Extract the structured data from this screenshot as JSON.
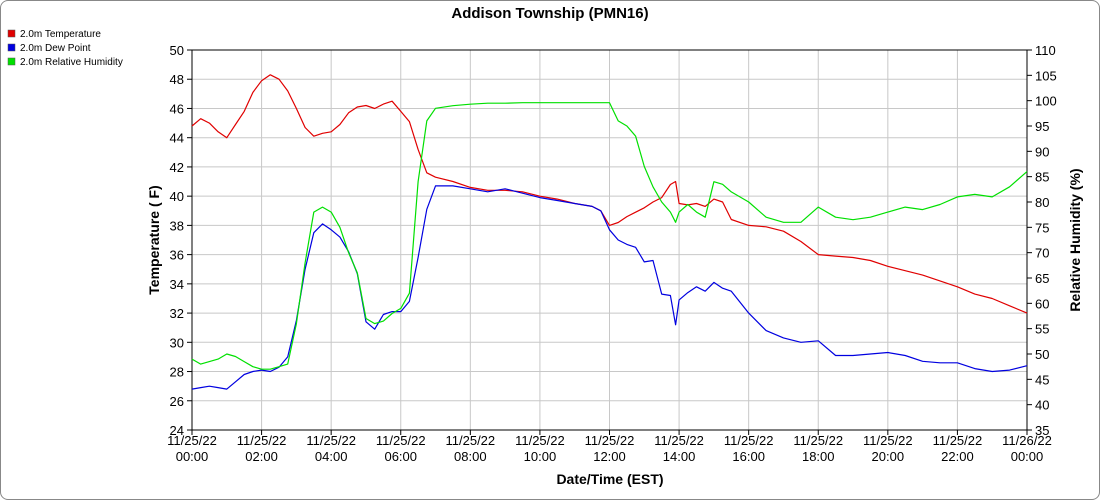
{
  "chart_data": {
    "type": "line",
    "title": "Addison Township (PMN16)",
    "xlabel": "Date/Time (EST)",
    "ylabel": "Temperature ( F)",
    "y2label": "Relative Humidity (%)",
    "xlim": [
      0,
      24
    ],
    "ylim": [
      24,
      50
    ],
    "y2lim": [
      35,
      110
    ],
    "grid": true,
    "legend_position": "top-left",
    "x_tick_labels": [
      {
        "x": 0,
        "date": "11/25/22",
        "time": "00:00"
      },
      {
        "x": 2,
        "date": "11/25/22",
        "time": "02:00"
      },
      {
        "x": 4,
        "date": "11/25/22",
        "time": "04:00"
      },
      {
        "x": 6,
        "date": "11/25/22",
        "time": "06:00"
      },
      {
        "x": 8,
        "date": "11/25/22",
        "time": "08:00"
      },
      {
        "x": 10,
        "date": "11/25/22",
        "time": "10:00"
      },
      {
        "x": 12,
        "date": "11/25/22",
        "time": "12:00"
      },
      {
        "x": 14,
        "date": "11/25/22",
        "time": "14:00"
      },
      {
        "x": 16,
        "date": "11/25/22",
        "time": "16:00"
      },
      {
        "x": 18,
        "date": "11/25/22",
        "time": "18:00"
      },
      {
        "x": 20,
        "date": "11/25/22",
        "time": "20:00"
      },
      {
        "x": 22,
        "date": "11/25/22",
        "time": "22:00"
      },
      {
        "x": 24,
        "date": "11/26/22",
        "time": "00:00"
      }
    ],
    "y_ticks": [
      24,
      26,
      28,
      30,
      32,
      34,
      36,
      38,
      40,
      42,
      44,
      46,
      48,
      50
    ],
    "y2_ticks": [
      35,
      40,
      45,
      50,
      55,
      60,
      65,
      70,
      75,
      80,
      85,
      90,
      95,
      100,
      105,
      110
    ],
    "series": [
      {
        "name": "2.0m Temperature",
        "color": "#e00000",
        "axis": "left",
        "x": [
          0,
          0.25,
          0.5,
          0.75,
          1.0,
          1.25,
          1.5,
          1.75,
          2.0,
          2.25,
          2.5,
          2.75,
          3.0,
          3.25,
          3.5,
          3.75,
          4.0,
          4.25,
          4.5,
          4.75,
          5.0,
          5.25,
          5.5,
          5.75,
          6.0,
          6.25,
          6.5,
          6.75,
          7.0,
          7.5,
          8.0,
          8.5,
          9.0,
          9.5,
          10.0,
          10.5,
          11.0,
          11.5,
          11.75,
          12.0,
          12.25,
          12.5,
          12.75,
          13.0,
          13.25,
          13.5,
          13.75,
          13.9,
          14.0,
          14.25,
          14.5,
          14.75,
          15.0,
          15.25,
          15.5,
          16.0,
          16.5,
          17.0,
          17.5,
          18.0,
          18.5,
          19.0,
          19.5,
          20.0,
          20.5,
          21.0,
          21.5,
          22.0,
          22.5,
          23.0,
          23.5,
          24.0
        ],
        "y": [
          44.8,
          45.3,
          45.0,
          44.4,
          44.0,
          44.9,
          45.8,
          47.1,
          47.9,
          48.3,
          48.0,
          47.2,
          46.0,
          44.7,
          44.1,
          44.3,
          44.4,
          44.9,
          45.7,
          46.1,
          46.2,
          46.0,
          46.3,
          46.5,
          45.8,
          45.1,
          43.2,
          41.6,
          41.3,
          41.0,
          40.6,
          40.4,
          40.4,
          40.3,
          40.0,
          39.8,
          39.5,
          39.3,
          39.0,
          38.0,
          38.2,
          38.6,
          38.9,
          39.2,
          39.6,
          39.9,
          40.8,
          41.0,
          39.5,
          39.4,
          39.5,
          39.3,
          39.8,
          39.6,
          38.4,
          38.0,
          37.9,
          37.6,
          36.9,
          36.0,
          35.9,
          35.8,
          35.6,
          35.2,
          34.9,
          34.6,
          34.2,
          33.8,
          33.3,
          33.0,
          32.5,
          32.0
        ]
      },
      {
        "name": "2.0m Dew Point",
        "color": "#0000e0",
        "axis": "left",
        "x": [
          0,
          0.25,
          0.5,
          0.75,
          1.0,
          1.25,
          1.5,
          1.75,
          2.0,
          2.25,
          2.5,
          2.75,
          3.0,
          3.25,
          3.5,
          3.75,
          4.0,
          4.25,
          4.5,
          4.75,
          5.0,
          5.25,
          5.5,
          5.75,
          6.0,
          6.25,
          6.5,
          6.75,
          7.0,
          7.5,
          8.0,
          8.5,
          9.0,
          9.5,
          10.0,
          10.5,
          11.0,
          11.5,
          11.75,
          12.0,
          12.25,
          12.5,
          12.75,
          13.0,
          13.25,
          13.5,
          13.75,
          13.9,
          14.0,
          14.25,
          14.5,
          14.75,
          15.0,
          15.25,
          15.5,
          16.0,
          16.5,
          17.0,
          17.5,
          18.0,
          18.5,
          19.0,
          19.5,
          20.0,
          20.5,
          21.0,
          21.5,
          22.0,
          22.5,
          23.0,
          23.5,
          24.0
        ],
        "y": [
          26.8,
          26.9,
          27.0,
          26.9,
          26.8,
          27.3,
          27.8,
          28.0,
          28.1,
          28.0,
          28.3,
          29.0,
          31.5,
          35.0,
          37.5,
          38.1,
          37.7,
          37.2,
          36.2,
          34.7,
          31.4,
          30.9,
          31.9,
          32.1,
          32.1,
          32.8,
          35.8,
          39.1,
          40.7,
          40.7,
          40.5,
          40.3,
          40.5,
          40.2,
          39.9,
          39.7,
          39.5,
          39.3,
          39.0,
          37.7,
          37.0,
          36.7,
          36.5,
          35.5,
          35.6,
          33.3,
          33.2,
          31.2,
          32.9,
          33.4,
          33.8,
          33.5,
          34.1,
          33.7,
          33.5,
          32.0,
          30.8,
          30.3,
          30.0,
          30.1,
          29.1,
          29.1,
          29.2,
          29.3,
          29.1,
          28.7,
          28.6,
          28.6,
          28.2,
          28.0,
          28.1,
          28.4
        ]
      },
      {
        "name": "2.0m Relative Humidity",
        "color": "#00e000",
        "axis": "right",
        "x": [
          0,
          0.25,
          0.5,
          0.75,
          1.0,
          1.25,
          1.5,
          1.75,
          2.0,
          2.25,
          2.5,
          2.75,
          3.0,
          3.25,
          3.5,
          3.75,
          4.0,
          4.25,
          4.5,
          4.75,
          5.0,
          5.25,
          5.5,
          5.75,
          6.0,
          6.25,
          6.5,
          6.75,
          7.0,
          7.5,
          8.0,
          8.5,
          9.0,
          9.5,
          10.0,
          10.5,
          11.0,
          11.5,
          11.75,
          12.0,
          12.25,
          12.5,
          12.75,
          13.0,
          13.25,
          13.5,
          13.75,
          13.9,
          14.0,
          14.25,
          14.5,
          14.75,
          15.0,
          15.25,
          15.5,
          16.0,
          16.5,
          17.0,
          17.5,
          18.0,
          18.5,
          19.0,
          19.5,
          20.0,
          20.5,
          21.0,
          21.5,
          22.0,
          22.5,
          23.0,
          23.5,
          24.0
        ],
        "y": [
          49,
          48,
          48.5,
          49,
          50,
          49.5,
          48.5,
          47.5,
          47,
          47,
          47.5,
          48,
          56,
          68,
          78,
          79,
          78,
          75,
          70,
          66,
          57,
          56,
          56.5,
          58,
          59,
          62,
          84,
          96,
          98.5,
          99,
          99.3,
          99.5,
          99.5,
          99.6,
          99.6,
          99.6,
          99.6,
          99.6,
          99.6,
          99.6,
          96,
          95,
          93,
          87,
          83,
          80,
          78,
          76,
          78,
          79.5,
          78,
          77,
          84,
          83.5,
          82,
          80,
          77,
          76,
          76,
          79,
          77,
          76.5,
          77,
          78,
          79,
          78.5,
          79.5,
          81,
          81.5,
          81,
          83,
          86
        ]
      }
    ]
  }
}
